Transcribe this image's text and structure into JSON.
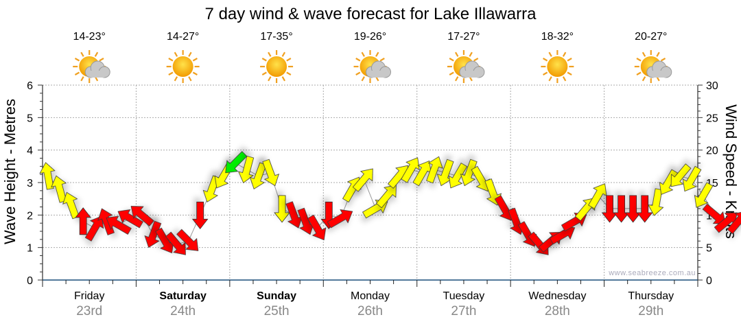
{
  "chart_data": {
    "type": "scatter",
    "title": "7 day wind & wave forecast for Lake Illawarra",
    "ylabel_left": "Wave Height - Metres",
    "ylabel_right": "Wind Speed - Knots",
    "ylim_left": [
      0,
      6
    ],
    "ylim_right": [
      0,
      30
    ],
    "yticks_left": [
      "0",
      "1",
      "2",
      "3",
      "4",
      "5",
      "6"
    ],
    "yticks_right": [
      "0",
      "5",
      "10",
      "15",
      "20",
      "25",
      "30"
    ],
    "grid": true,
    "watermark": "www.seabreeze.com.au",
    "days": [
      {
        "name": "Friday",
        "date": "23rd",
        "temps": "14-23°",
        "icon": "partly-cloudy",
        "bold": false
      },
      {
        "name": "Saturday",
        "date": "24th",
        "temps": "14-27°",
        "icon": "sunny",
        "bold": true
      },
      {
        "name": "Sunday",
        "date": "25th",
        "temps": "17-35°",
        "icon": "sunny",
        "bold": true
      },
      {
        "name": "Monday",
        "date": "26th",
        "temps": "19-26°",
        "icon": "partly-cloudy",
        "bold": false
      },
      {
        "name": "Tuesday",
        "date": "27th",
        "temps": "17-27°",
        "icon": "partly-cloudy",
        "bold": false
      },
      {
        "name": "Wednesday",
        "date": "28th",
        "temps": "18-32°",
        "icon": "sunny",
        "bold": false
      },
      {
        "name": "Thursday",
        "date": "29th",
        "temps": "20-27°",
        "icon": "partly-cloudy",
        "bold": false
      }
    ],
    "wind_points_note": "3-hourly wind speed (knots), arrow heading (deg, 0=pointing up), colour",
    "wind": [
      [
        16,
        -10,
        "#ffff00"
      ],
      [
        14,
        -15,
        "#ffff00"
      ],
      [
        11.5,
        -20,
        "#ffff00"
      ],
      [
        9,
        0,
        "#ff0000"
      ],
      [
        8,
        30,
        "#ff0000"
      ],
      [
        9,
        -20,
        "#ff0000"
      ],
      [
        8.5,
        -60,
        "#ff0000"
      ],
      [
        9.5,
        -60,
        "#ff0000"
      ],
      [
        10,
        -50,
        "#ff0000"
      ],
      [
        7,
        200,
        "#ff0000"
      ],
      [
        6,
        150,
        "#ff0000"
      ],
      [
        5.5,
        140,
        "#ff0000"
      ],
      [
        6,
        135,
        "#ff0000"
      ],
      [
        10,
        180,
        "#ff0000"
      ],
      [
        14,
        200,
        "#ffff00"
      ],
      [
        16,
        210,
        "#ffff00"
      ],
      [
        18,
        225,
        "#00ee00"
      ],
      [
        17,
        195,
        "#ffff00"
      ],
      [
        16,
        200,
        "#ffff00"
      ],
      [
        16.5,
        160,
        "#ffff00"
      ],
      [
        11,
        180,
        "#ffff00"
      ],
      [
        10,
        160,
        "#ff0000"
      ],
      [
        9,
        160,
        "#ff0000"
      ],
      [
        8,
        150,
        "#ff0000"
      ],
      [
        10,
        180,
        "#ff0000"
      ],
      [
        9.5,
        60,
        "#ff0000"
      ],
      [
        14,
        30,
        "#ffff00"
      ],
      [
        15.5,
        40,
        "#ffff00"
      ],
      [
        11,
        60,
        "#ffff00"
      ],
      [
        13,
        40,
        "#ffff00"
      ],
      [
        16,
        40,
        "#ffff00"
      ],
      [
        17,
        30,
        "#ffff00"
      ],
      [
        16.5,
        30,
        "#ffff00"
      ],
      [
        17,
        20,
        "#ffff00"
      ],
      [
        16.5,
        200,
        "#ffff00"
      ],
      [
        16,
        210,
        "#ffff00"
      ],
      [
        16.5,
        200,
        "#ffff00"
      ],
      [
        15.5,
        150,
        "#ffff00"
      ],
      [
        13.5,
        160,
        "#ffff00"
      ],
      [
        11,
        150,
        "#ff0000"
      ],
      [
        9,
        160,
        "#ff0000"
      ],
      [
        7,
        150,
        "#ff0000"
      ],
      [
        5.5,
        140,
        "#ff0000"
      ],
      [
        6,
        50,
        "#ff0000"
      ],
      [
        7,
        60,
        "#ff0000"
      ],
      [
        9,
        60,
        "#ff0000"
      ],
      [
        11,
        40,
        "#ffff00"
      ],
      [
        13,
        30,
        "#ffff00"
      ],
      [
        11,
        180,
        "#ff0000"
      ],
      [
        11,
        180,
        "#ff0000"
      ],
      [
        11,
        180,
        "#ff0000"
      ],
      [
        11,
        180,
        "#ff0000"
      ],
      [
        12,
        190,
        "#ffff00"
      ],
      [
        15,
        210,
        "#ffff00"
      ],
      [
        16,
        220,
        "#ffff00"
      ],
      [
        15.5,
        210,
        "#ffff00"
      ],
      [
        13,
        210,
        "#ffff00"
      ],
      [
        10,
        130,
        "#ff0000"
      ],
      [
        9,
        50,
        "#ff0000"
      ],
      [
        9,
        40,
        "#ff0000"
      ],
      [
        10,
        0,
        "#ff0000"
      ],
      [
        12.5,
        180,
        "#ffff00"
      ],
      [
        12.5,
        200,
        "#ffff00"
      ],
      [
        11.5,
        200,
        "#ffff00"
      ],
      [
        11,
        140,
        "#ff0000"
      ],
      [
        10,
        150,
        "#ff0000"
      ],
      [
        8,
        0,
        "#ff0000"
      ]
    ]
  }
}
